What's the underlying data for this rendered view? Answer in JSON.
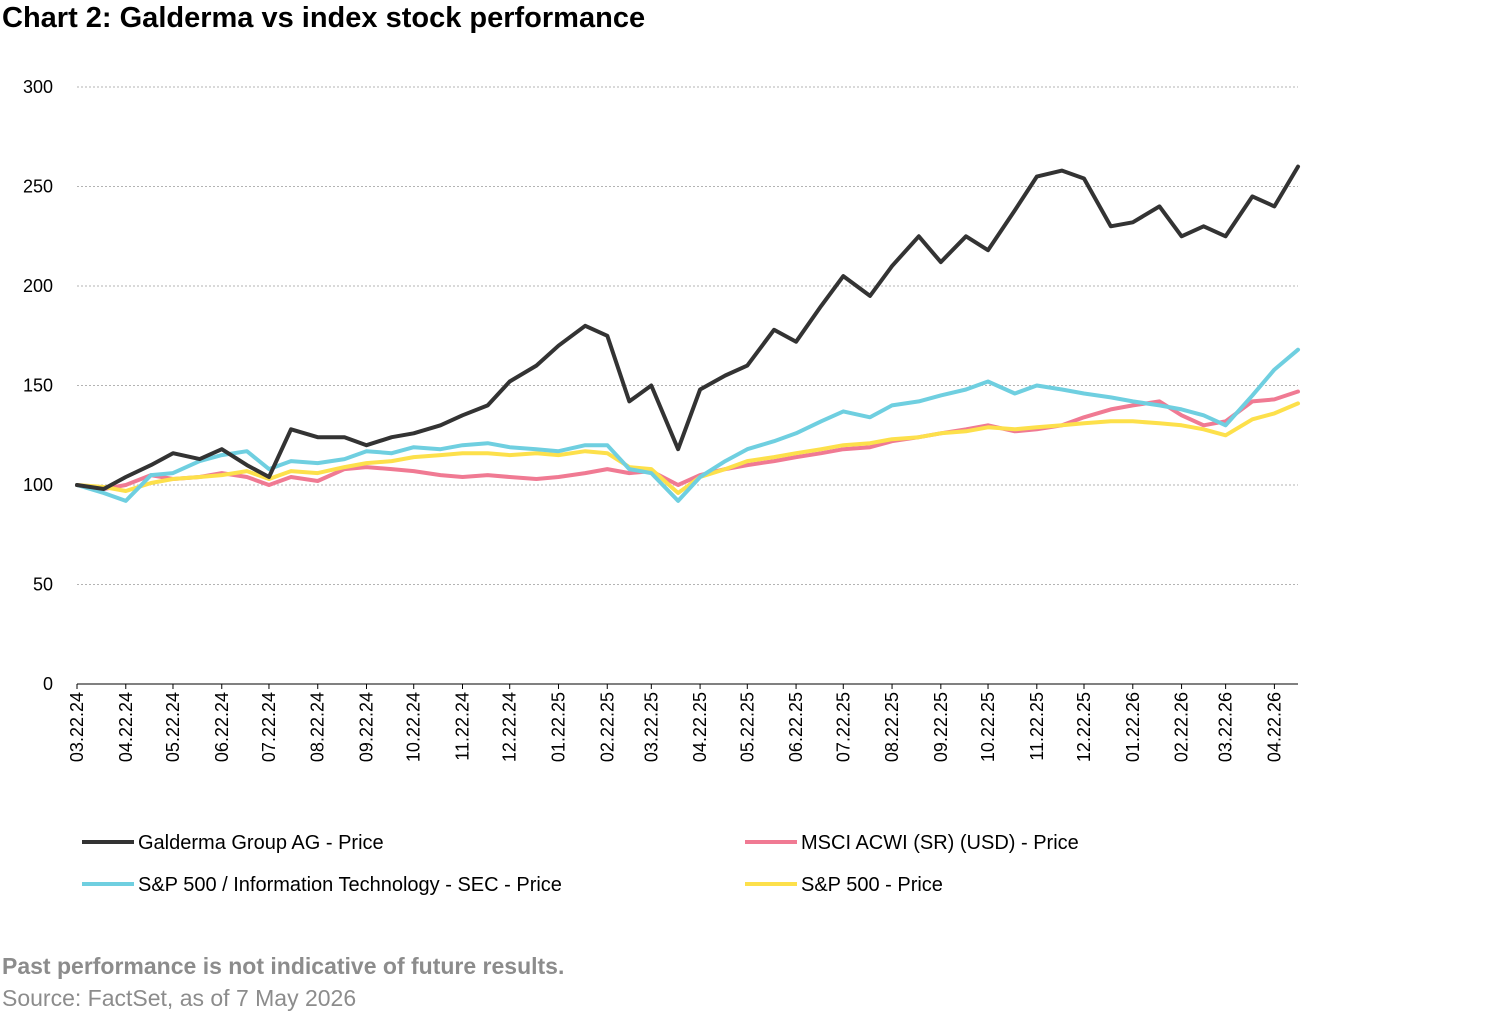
{
  "title": "Chart 2: Galderma vs index stock performance",
  "footer": {
    "disclaimer": "Past performance is not indicative of future results.",
    "source": "Source: FactSet, as of 7 May 2026"
  },
  "chart_data": {
    "type": "line",
    "title": "Chart 2: Galderma vs index stock performance",
    "xlabel": "",
    "ylabel": "",
    "ylim": [
      0,
      300
    ],
    "yticks": [
      0,
      50,
      100,
      150,
      200,
      250,
      300
    ],
    "grid": true,
    "legend_position": "bottom",
    "x_tick_labels": [
      "03.22.24",
      "04.22.24",
      "05.22.24",
      "06.22.24",
      "07.22.24",
      "08.22.24",
      "09.22.24",
      "10.22.24",
      "11.22.24",
      "12.22.24",
      "01.22.25",
      "02.22.25",
      "03.22.25",
      "04.22.25",
      "05.22.25",
      "06.22.25",
      "07.22.25",
      "08.22.25",
      "09.22.25",
      "10.22.25",
      "11.22.25",
      "12.22.25",
      "01.22.26",
      "02.22.26",
      "03.22.26",
      "04.22.26"
    ],
    "x": [
      "2024-03-22",
      "2024-04-08",
      "2024-04-22",
      "2024-05-08",
      "2024-05-22",
      "2024-06-08",
      "2024-06-22",
      "2024-07-08",
      "2024-07-22",
      "2024-08-05",
      "2024-08-22",
      "2024-09-08",
      "2024-09-22",
      "2024-10-08",
      "2024-10-22",
      "2024-11-08",
      "2024-11-22",
      "2024-12-08",
      "2024-12-22",
      "2025-01-08",
      "2025-01-22",
      "2025-02-08",
      "2025-02-22",
      "2025-03-08",
      "2025-03-22",
      "2025-04-08",
      "2025-04-22",
      "2025-05-08",
      "2025-05-22",
      "2025-06-08",
      "2025-06-22",
      "2025-07-08",
      "2025-07-22",
      "2025-08-08",
      "2025-08-22",
      "2025-09-08",
      "2025-09-22",
      "2025-10-08",
      "2025-10-22",
      "2025-11-08",
      "2025-11-22",
      "2025-12-08",
      "2025-12-22",
      "2026-01-08",
      "2026-01-22",
      "2026-02-08",
      "2026-02-22",
      "2026-03-08",
      "2026-03-22",
      "2026-04-08",
      "2026-04-22",
      "2026-05-07"
    ],
    "series": [
      {
        "name": "Galderma Group AG - Price",
        "color": "#333333",
        "values": [
          100,
          98,
          104,
          110,
          116,
          113,
          118,
          110,
          104,
          128,
          124,
          124,
          120,
          124,
          126,
          130,
          135,
          140,
          152,
          160,
          170,
          180,
          175,
          142,
          150,
          118,
          148,
          155,
          160,
          178,
          172,
          190,
          205,
          195,
          210,
          225,
          212,
          225,
          218,
          238,
          255,
          258,
          254,
          230,
          232,
          240,
          225,
          230,
          225,
          245,
          240,
          260
        ]
      },
      {
        "name": "MSCI ACWI (SR) (USD) - Price",
        "color": "#f07a93",
        "values": [
          100,
          98,
          100,
          105,
          103,
          104,
          106,
          104,
          100,
          104,
          102,
          108,
          109,
          108,
          107,
          105,
          104,
          105,
          104,
          103,
          104,
          106,
          108,
          106,
          107,
          100,
          105,
          108,
          110,
          112,
          114,
          116,
          118,
          119,
          122,
          124,
          126,
          128,
          130,
          127,
          128,
          130,
          134,
          138,
          140,
          142,
          135,
          130,
          132,
          142,
          143,
          147
        ]
      },
      {
        "name": "S&P 500 / Information Technology - SEC - Price",
        "color": "#6fcfe0",
        "values": [
          100,
          96,
          92,
          105,
          106,
          112,
          115,
          117,
          108,
          112,
          111,
          113,
          117,
          116,
          119,
          118,
          120,
          121,
          119,
          118,
          117,
          120,
          120,
          108,
          106,
          92,
          104,
          112,
          118,
          122,
          126,
          132,
          137,
          134,
          140,
          142,
          145,
          148,
          152,
          146,
          150,
          148,
          146,
          144,
          142,
          140,
          138,
          135,
          130,
          145,
          158,
          168
        ]
      },
      {
        "name": "S&P 500 - Price",
        "color": "#fde04b",
        "values": [
          100,
          99,
          97,
          101,
          103,
          104,
          105,
          107,
          103,
          107,
          106,
          109,
          111,
          112,
          114,
          115,
          116,
          116,
          115,
          116,
          115,
          117,
          116,
          109,
          108,
          96,
          104,
          108,
          112,
          114,
          116,
          118,
          120,
          121,
          123,
          124,
          126,
          127,
          129,
          128,
          129,
          130,
          131,
          132,
          132,
          131,
          130,
          128,
          125,
          133,
          136,
          141
        ]
      }
    ]
  }
}
